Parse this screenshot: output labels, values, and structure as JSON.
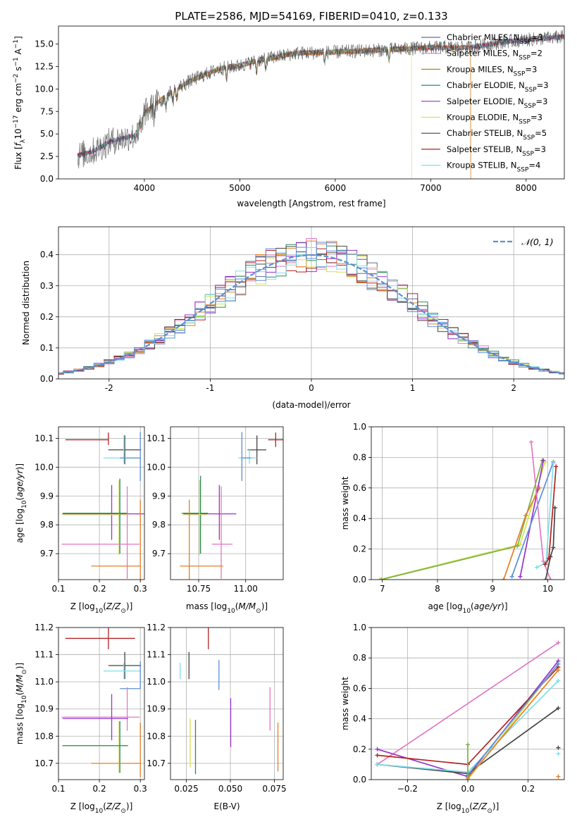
{
  "figure": {
    "title": "PLATE=2586, MJD=54169, FIBERID=0410, z=0.133"
  },
  "colors": {
    "Chabrier MILES": "#6a6a9a",
    "Salpeter MILES": "#e377c2",
    "Kroupa MILES": "#b8860b",
    "Chabrier ELODIE": "#2e8b57",
    "Salpeter ELODIE": "#9932cc",
    "Kroupa ELODIE": "#d4e157",
    "Chabrier STELIB": "#444444",
    "Salpeter STELIB": "#b22222",
    "Kroupa STELIB": "#80deea",
    "orange": "#e67e22",
    "blue": "#5b8fd6",
    "green": "#7cb342"
  },
  "chart_data": [
    {
      "type": "line",
      "title": "PLATE=2586, MJD=54169, FIBERID=0410, z=0.133",
      "xlabel": "wavelength [Angstrom, rest frame]",
      "ylabel": "Flux [f_λ 10^-17 erg cm^-2 s^-1 A^-1]",
      "xlim": [
        3100,
        8400
      ],
      "ylim": [
        0,
        17
      ],
      "xticks": [
        "4000",
        "5000",
        "6000",
        "7000",
        "8000"
      ],
      "yticks": [
        "0.0",
        "2.5",
        "5.0",
        "7.5",
        "10.0",
        "12.5",
        "15.0"
      ],
      "grid": false,
      "legend": "top-right",
      "legend_entries": [
        {
          "label": "Chabrier MILES, N",
          "sub": "SSP",
          "suffix": "=3"
        },
        {
          "label": "Salpeter MILES, N",
          "sub": "SSP",
          "suffix": "=2"
        },
        {
          "label": "Kroupa MILES, N",
          "sub": "SSP",
          "suffix": "=3"
        },
        {
          "label": "Chabrier ELODIE, N",
          "sub": "SSP",
          "suffix": "=3"
        },
        {
          "label": "Salpeter ELODIE, N",
          "sub": "SSP",
          "suffix": "=3"
        },
        {
          "label": "Kroupa ELODIE, N",
          "sub": "SSP",
          "suffix": "=3"
        },
        {
          "label": "Chabrier STELIB, N",
          "sub": "SSP",
          "suffix": "=5"
        },
        {
          "label": "Salpeter STELIB, N",
          "sub": "SSP",
          "suffix": "=3"
        },
        {
          "label": "Kroupa STELIB, N",
          "sub": "SSP",
          "suffix": "=4"
        }
      ],
      "spectrum": {
        "x_start": 3300,
        "x_end": 8400,
        "continuum": [
          [
            3300,
            2.6
          ],
          [
            3450,
            3.0
          ],
          [
            3650,
            4.2
          ],
          [
            3900,
            4.8
          ],
          [
            4000,
            7.3
          ],
          [
            4100,
            8.2
          ],
          [
            4300,
            9.8
          ],
          [
            4500,
            11.0
          ],
          [
            4800,
            12.3
          ],
          [
            5000,
            12.6
          ],
          [
            5200,
            13.2
          ],
          [
            5600,
            14.0
          ],
          [
            6000,
            14.1
          ],
          [
            6400,
            14.3
          ],
          [
            7000,
            14.6
          ],
          [
            7400,
            14.6
          ],
          [
            7800,
            15.3
          ],
          [
            8400,
            15.8
          ]
        ],
        "noisy_data_series": "Chabrier STELIB"
      }
    },
    {
      "type": "line",
      "xlabel": "(data-model)/error",
      "ylabel": "Normed distribution",
      "xlim": [
        -2.5,
        2.5
      ],
      "ylim": [
        0,
        0.49
      ],
      "xticks": [
        -2,
        -1,
        0,
        1,
        2
      ],
      "yticks": [
        "0.0",
        "0.1",
        "0.2",
        "0.3",
        "0.4"
      ],
      "grid": true,
      "legend": "top-right",
      "reference_curve": {
        "name": "𝒩(0, 1)",
        "mean": 0,
        "sigma": 1
      },
      "histogram_bin_width": 0.1,
      "histogram_series": [
        "Chabrier MILES",
        "Salpeter MILES",
        "orange",
        "Chabrier ELODIE",
        "Salpeter ELODIE",
        "Kroupa ELODIE",
        "Chabrier STELIB",
        "Salpeter STELIB",
        "Kroupa STELIB",
        "blue"
      ]
    },
    {
      "type": "scatter",
      "xlabel": "Z [log10(Z/Z⊙)]",
      "ylabel": "age  [log10(age/yr)]",
      "xlim": [
        0.1,
        0.31
      ],
      "ylim": [
        9.61,
        10.14
      ],
      "xticks": [
        "0.1",
        "0.2",
        "0.3"
      ],
      "yticks": [
        "9.7",
        "9.8",
        "9.9",
        "10.0",
        "10.1"
      ],
      "grid": true,
      "points": [
        {
          "series": "Salpeter STELIB",
          "x": 0.222,
          "y": 10.095,
          "xerr": [
            0.105,
            0.0
          ],
          "yerr": [
            0.018,
            0.025
          ]
        },
        {
          "series": "Chabrier STELIB",
          "x": 0.262,
          "y": 10.06,
          "xerr": [
            0.04,
            0.04
          ],
          "yerr": [
            0.05,
            0.05
          ]
        },
        {
          "series": "Kroupa STELIB",
          "x": 0.26,
          "y": 10.032,
          "xerr": [
            0.05,
            0.04
          ],
          "yerr": [
            0.02,
            0.08
          ]
        },
        {
          "series": "blue",
          "x": 0.3,
          "y": 10.032,
          "xerr": [
            0.05,
            0.0
          ],
          "yerr": [
            0.08,
            0.09
          ]
        },
        {
          "series": "Salpeter ELODIE",
          "x": 0.23,
          "y": 9.838,
          "xerr": [
            0.12,
            0.08
          ],
          "yerr": [
            0.09,
            0.1
          ]
        },
        {
          "series": "Kroupa ELODIE",
          "x": 0.248,
          "y": 9.835,
          "xerr": [
            0.14,
            0.02
          ],
          "yerr": [
            0.14,
            0.12
          ]
        },
        {
          "series": "Chabrier ELODIE",
          "x": 0.25,
          "y": 9.84,
          "xerr": [
            0.14,
            0.02
          ],
          "yerr": [
            0.14,
            0.12
          ]
        },
        {
          "series": "Salpeter MILES",
          "x": 0.268,
          "y": 9.733,
          "xerr": [
            0.16,
            0.03
          ],
          "yerr": [
            0.12,
            0.2
          ]
        },
        {
          "series": "orange",
          "x": 0.3,
          "y": 9.657,
          "xerr": [
            0.12,
            0.0
          ],
          "yerr": [
            0.05,
            0.23
          ]
        }
      ]
    },
    {
      "type": "scatter",
      "xlabel": "mass [log10(M/M⊙)]",
      "ylabel": "",
      "xlim": [
        10.6,
        11.2
      ],
      "ylim": [
        9.61,
        10.14
      ],
      "xticks": [
        "10.75",
        "11.00"
      ],
      "yticks": [
        "9.7",
        "9.8",
        "9.9",
        "10.0",
        "10.1"
      ],
      "grid": true,
      "points": [
        {
          "series": "Salpeter STELIB",
          "x": 11.16,
          "y": 10.095,
          "xerr": [
            0.04,
            0.04
          ],
          "yerr": [
            0.025,
            0.025
          ]
        },
        {
          "series": "Chabrier STELIB",
          "x": 11.06,
          "y": 10.06,
          "xerr": [
            0.05,
            0.05
          ],
          "yerr": [
            0.05,
            0.05
          ]
        },
        {
          "series": "Kroupa STELIB",
          "x": 11.02,
          "y": 10.032,
          "xerr": [
            0.06,
            0.04
          ],
          "yerr": [
            0.02,
            0.03
          ]
        },
        {
          "series": "blue",
          "x": 10.98,
          "y": 10.032,
          "xerr": [
            0.0,
            0.05
          ],
          "yerr": [
            0.08,
            0.09
          ]
        },
        {
          "series": "Salpeter ELODIE",
          "x": 10.86,
          "y": 9.838,
          "xerr": [
            0.19,
            0.09
          ],
          "yerr": [
            0.09,
            0.1
          ]
        },
        {
          "series": "Chabrier ELODIE",
          "x": 10.76,
          "y": 9.84,
          "xerr": [
            0.1,
            0.04
          ],
          "yerr": [
            0.14,
            0.13
          ]
        },
        {
          "series": "Kroupa ELODIE",
          "x": 10.755,
          "y": 9.835,
          "xerr": [
            0.09,
            0.04
          ],
          "yerr": [
            0.14,
            0.12
          ]
        },
        {
          "series": "Salpeter MILES",
          "x": 10.87,
          "y": 9.733,
          "xerr": [
            0.05,
            0.06
          ],
          "yerr": [
            0.12,
            0.2
          ]
        },
        {
          "series": "orange",
          "x": 10.7,
          "y": 9.657,
          "xerr": [
            0.05,
            0.18
          ],
          "yerr": [
            0.05,
            0.23
          ]
        }
      ]
    },
    {
      "type": "line",
      "xlabel": "age  [log10(age/yr)]",
      "ylabel": "mass weight",
      "xlim": [
        6.8,
        10.3
      ],
      "ylim": [
        0,
        1
      ],
      "xticks": [
        "7",
        "8",
        "9",
        "10"
      ],
      "yticks": [
        "0.0",
        "0.2",
        "0.4",
        "0.6",
        "0.8",
        "1.0"
      ],
      "grid": true,
      "series": [
        {
          "color": "Kroupa ELODIE",
          "x": [
            6.95,
            9.5,
            9.95
          ],
          "y": [
            0.0,
            0.23,
            0.77
          ]
        },
        {
          "color": "green",
          "x": [
            6.98,
            9.45,
            9.9
          ],
          "y": [
            0.0,
            0.22,
            0.78
          ]
        },
        {
          "color": "orange",
          "x": [
            9.2,
            9.6,
            9.85
          ],
          "y": [
            0.0,
            0.42,
            0.6
          ]
        },
        {
          "color": "Salpeter ELODIE",
          "x": [
            9.5,
            9.92
          ],
          "y": [
            0.02,
            0.78
          ]
        },
        {
          "color": "blue",
          "x": [
            9.35,
            10.1
          ],
          "y": [
            0.02,
            0.77
          ]
        },
        {
          "color": "Salpeter MILES",
          "x": [
            9.7,
            9.92,
            10.05
          ],
          "y": [
            0.9,
            0.12,
            0.0
          ]
        },
        {
          "color": "Kroupa STELIB",
          "x": [
            9.8,
            9.97,
            10.1
          ],
          "y": [
            0.08,
            0.11,
            0.76
          ]
        },
        {
          "color": "Chabrier STELIB",
          "x": [
            9.96,
            10.05,
            10.1,
            10.13
          ],
          "y": [
            0.0,
            0.15,
            0.21,
            0.47
          ]
        },
        {
          "color": "Salpeter STELIB",
          "x": [
            9.95,
            10.02,
            10.15
          ],
          "y": [
            0.1,
            0.14,
            0.74
          ]
        }
      ]
    },
    {
      "type": "scatter",
      "xlabel": "Z [log10(Z/Z⊙)]",
      "ylabel": "mass [log10(M/M⊙)]",
      "xlim": [
        0.1,
        0.31
      ],
      "ylim": [
        10.64,
        11.2
      ],
      "xticks": [
        "0.1",
        "0.2",
        "0.3"
      ],
      "yticks": [
        "10.7",
        "10.8",
        "10.9",
        "11.0",
        "11.1",
        "11.2"
      ],
      "grid": true,
      "points": [
        {
          "series": "Salpeter STELIB",
          "x": 0.222,
          "y": 11.16,
          "xerr": [
            0.105,
            0.065
          ],
          "yerr": [
            0.04,
            0.04
          ]
        },
        {
          "series": "Chabrier STELIB",
          "x": 0.262,
          "y": 11.06,
          "xerr": [
            0.04,
            0.04
          ],
          "yerr": [
            0.05,
            0.05
          ]
        },
        {
          "series": "Kroupa STELIB",
          "x": 0.26,
          "y": 11.04,
          "xerr": [
            0.05,
            0.04
          ],
          "yerr": [
            0.03,
            0.03
          ]
        },
        {
          "series": "blue",
          "x": 0.3,
          "y": 10.975,
          "xerr": [
            0.05,
            0.0
          ],
          "yerr": [
            0.0,
            0.1
          ]
        },
        {
          "series": "Salpeter MILES",
          "x": 0.268,
          "y": 10.87,
          "xerr": [
            0.16,
            0.03
          ],
          "yerr": [
            0.05,
            0.11
          ]
        },
        {
          "series": "Salpeter ELODIE",
          "x": 0.23,
          "y": 10.865,
          "xerr": [
            0.12,
            0.04
          ],
          "yerr": [
            0.08,
            0.09
          ]
        },
        {
          "series": "Kroupa ELODIE",
          "x": 0.248,
          "y": 10.765,
          "xerr": [
            0.14,
            0.02
          ],
          "yerr": [
            0.1,
            0.09
          ]
        },
        {
          "series": "Chabrier ELODIE",
          "x": 0.25,
          "y": 10.765,
          "xerr": [
            0.14,
            0.02
          ],
          "yerr": [
            0.1,
            0.09
          ]
        },
        {
          "series": "orange",
          "x": 0.3,
          "y": 10.7,
          "xerr": [
            0.12,
            0.0
          ],
          "yerr": [
            0.05,
            0.15
          ]
        }
      ]
    },
    {
      "type": "scatter",
      "xlabel": "E(B-V)",
      "ylabel": "",
      "xlim": [
        0.016,
        0.08
      ],
      "ylim": [
        10.64,
        11.2
      ],
      "xticks": [
        "0.025",
        "0.050",
        "0.075"
      ],
      "yticks": [
        "10.7",
        "10.8",
        "10.9",
        "11.0",
        "11.1",
        "11.2"
      ],
      "grid": true,
      "points": [
        {
          "series": "Salpeter STELIB",
          "x": 0.0375,
          "y": 11.16,
          "xerr": [
            0,
            0
          ],
          "yerr": [
            0.04,
            0.04
          ]
        },
        {
          "series": "Chabrier STELIB",
          "x": 0.0265,
          "y": 11.06,
          "xerr": [
            0,
            0
          ],
          "yerr": [
            0.05,
            0.05
          ]
        },
        {
          "series": "Kroupa STELIB",
          "x": 0.0215,
          "y": 11.04,
          "xerr": [
            0,
            0
          ],
          "yerr": [
            0.03,
            0.03
          ]
        },
        {
          "series": "blue",
          "x": 0.0435,
          "y": 11.02,
          "xerr": [
            0,
            0
          ],
          "yerr": [
            0.05,
            0.06
          ]
        },
        {
          "series": "Salpeter ELODIE",
          "x": 0.0502,
          "y": 10.85,
          "xerr": [
            0,
            0
          ],
          "yerr": [
            0.09,
            0.09
          ]
        },
        {
          "series": "Salpeter MILES",
          "x": 0.0725,
          "y": 10.9,
          "xerr": [
            0,
            0
          ],
          "yerr": [
            0.08,
            0.08
          ]
        },
        {
          "series": "orange",
          "x": 0.077,
          "y": 10.76,
          "xerr": [
            0,
            0
          ],
          "yerr": [
            0.09,
            0.09
          ]
        },
        {
          "series": "Kroupa ELODIE",
          "x": 0.0272,
          "y": 10.775,
          "xerr": [
            0,
            0
          ],
          "yerr": [
            0.09,
            0.09
          ]
        },
        {
          "series": "Chabrier ELODIE",
          "x": 0.0302,
          "y": 10.76,
          "xerr": [
            0,
            0
          ],
          "yerr": [
            0.1,
            0.1
          ]
        }
      ]
    },
    {
      "type": "line",
      "xlabel": "Z [log10(Z/Z⊙)]",
      "ylabel": "mass weight",
      "xlim": [
        -0.32,
        0.32
      ],
      "ylim": [
        0,
        1
      ],
      "xticks": [
        "−0.2",
        "0.0",
        "0.2"
      ],
      "yticks": [
        "0.0",
        "0.2",
        "0.4",
        "0.6",
        "0.8",
        "1.0"
      ],
      "grid": true,
      "series": [
        {
          "color": "Salpeter MILES",
          "x": [
            -0.3,
            0.3
          ],
          "y": [
            0.1,
            0.9
          ]
        },
        {
          "color": "Salpeter ELODIE",
          "x": [
            -0.3,
            0.0,
            0.3
          ],
          "y": [
            0.2,
            0.02,
            0.78
          ]
        },
        {
          "color": "Salpeter STELIB",
          "x": [
            -0.3,
            0.0,
            0.3
          ],
          "y": [
            0.16,
            0.1,
            0.74
          ]
        },
        {
          "color": "Chabrier STELIB",
          "x": [
            -0.3,
            0.0,
            0.3
          ],
          "y": [
            0.1,
            0.04,
            0.47
          ]
        },
        {
          "color": "Kroupa STELIB",
          "x": [
            -0.3,
            0.0,
            0.3
          ],
          "y": [
            0.1,
            0.05,
            0.65
          ]
        },
        {
          "color": "Kroupa ELODIE",
          "x": [
            0.0,
            0.3
          ],
          "y": [
            0.0,
            0.76
          ]
        },
        {
          "color": "orange",
          "x": [
            0.0,
            0.3
          ],
          "y": [
            0.01,
            0.72
          ]
        },
        {
          "color": "blue",
          "x": [
            0.0,
            0.3
          ],
          "y": [
            0.03,
            0.76
          ]
        },
        {
          "color": "green",
          "x": [
            0.0,
            0.0
          ],
          "y": [
            0.0,
            0.23
          ]
        }
      ],
      "markers_at_right": [
        {
          "color": "orange",
          "x": 0.3,
          "y": 0.02
        },
        {
          "color": "Chabrier STELIB",
          "x": 0.3,
          "y": 0.21
        },
        {
          "color": "Kroupa STELIB",
          "x": 0.3,
          "y": 0.17
        }
      ]
    }
  ]
}
